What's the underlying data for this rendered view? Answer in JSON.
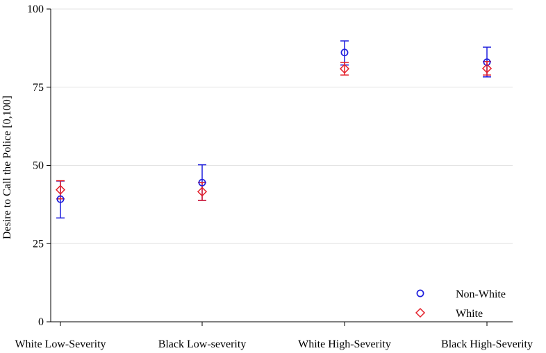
{
  "chart_data": {
    "type": "scatter",
    "title": "",
    "xlabel": "",
    "ylabel": "Desire to Call the Police [0,100]",
    "ylim": [
      0,
      100
    ],
    "yticks": [
      0,
      25,
      50,
      75,
      100
    ],
    "grid": true,
    "legend_position": "bottom-right",
    "categories": [
      "White Low-Severity",
      "Black Low-severity",
      "White High-Severity",
      "Black High-Severity"
    ],
    "series": [
      {
        "name": "Non-White",
        "marker": "circle",
        "color": "#1f1fdd",
        "values": [
          39.2,
          44.5,
          86.1,
          83.0
        ],
        "ci_low": [
          33.2,
          38.8,
          82.1,
          78.3
        ],
        "ci_high": [
          45.0,
          50.2,
          89.8,
          87.8
        ]
      },
      {
        "name": "White",
        "marker": "diamond",
        "color": "#e4202a",
        "values": [
          42.2,
          41.6,
          80.9,
          81.0
        ],
        "ci_low": [
          39.3,
          38.8,
          78.9,
          78.9
        ],
        "ci_high": [
          45.1,
          44.5,
          82.9,
          83.2
        ]
      }
    ]
  }
}
